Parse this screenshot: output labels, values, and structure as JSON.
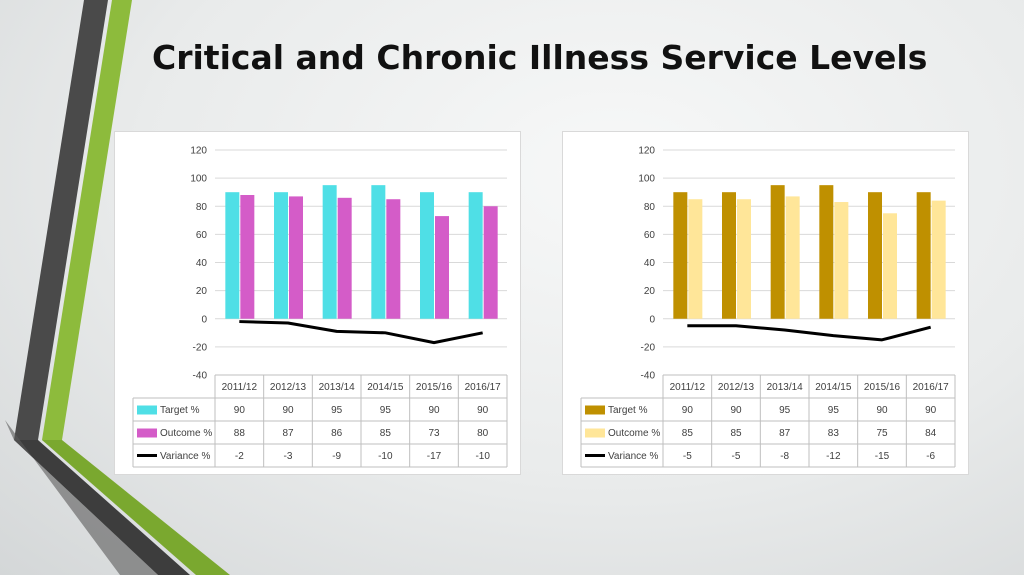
{
  "title": "Critical and Chronic Illness Service Levels",
  "chart_data": [
    {
      "type": "bar",
      "categories": [
        "2011/12",
        "2012/13",
        "2013/14",
        "2014/15",
        "2015/16",
        "2016/17"
      ],
      "ylim": [
        -40,
        120
      ],
      "yticks": [
        120,
        100,
        80,
        60,
        40,
        20,
        0,
        -20,
        -40
      ],
      "grid": true,
      "legend": "data-table",
      "series": [
        {
          "name": "Target %",
          "kind": "bar",
          "color": "#4fdfe6",
          "values": [
            90,
            90,
            95,
            95,
            90,
            90
          ]
        },
        {
          "name": "Outcome %",
          "kind": "bar",
          "color": "#d45cc8",
          "values": [
            88,
            87,
            86,
            85,
            73,
            80
          ]
        },
        {
          "name": "Variance %",
          "kind": "line",
          "color": "#000000",
          "values": [
            -2,
            -3,
            -9,
            -10,
            -17,
            -10
          ]
        }
      ]
    },
    {
      "type": "bar",
      "categories": [
        "2011/12",
        "2012/13",
        "2013/14",
        "2014/15",
        "2015/16",
        "2016/17"
      ],
      "ylim": [
        -40,
        120
      ],
      "yticks": [
        120,
        100,
        80,
        60,
        40,
        20,
        0,
        -20,
        -40
      ],
      "grid": true,
      "legend": "data-table",
      "series": [
        {
          "name": "Target %",
          "kind": "bar",
          "color": "#bf9000",
          "values": [
            90,
            90,
            95,
            95,
            90,
            90
          ]
        },
        {
          "name": "Outcome %",
          "kind": "bar",
          "color": "#ffe699",
          "values": [
            85,
            85,
            87,
            83,
            75,
            84
          ]
        },
        {
          "name": "Variance %",
          "kind": "line",
          "color": "#000000",
          "values": [
            -5,
            -5,
            -8,
            -12,
            -15,
            -6
          ]
        }
      ]
    }
  ]
}
